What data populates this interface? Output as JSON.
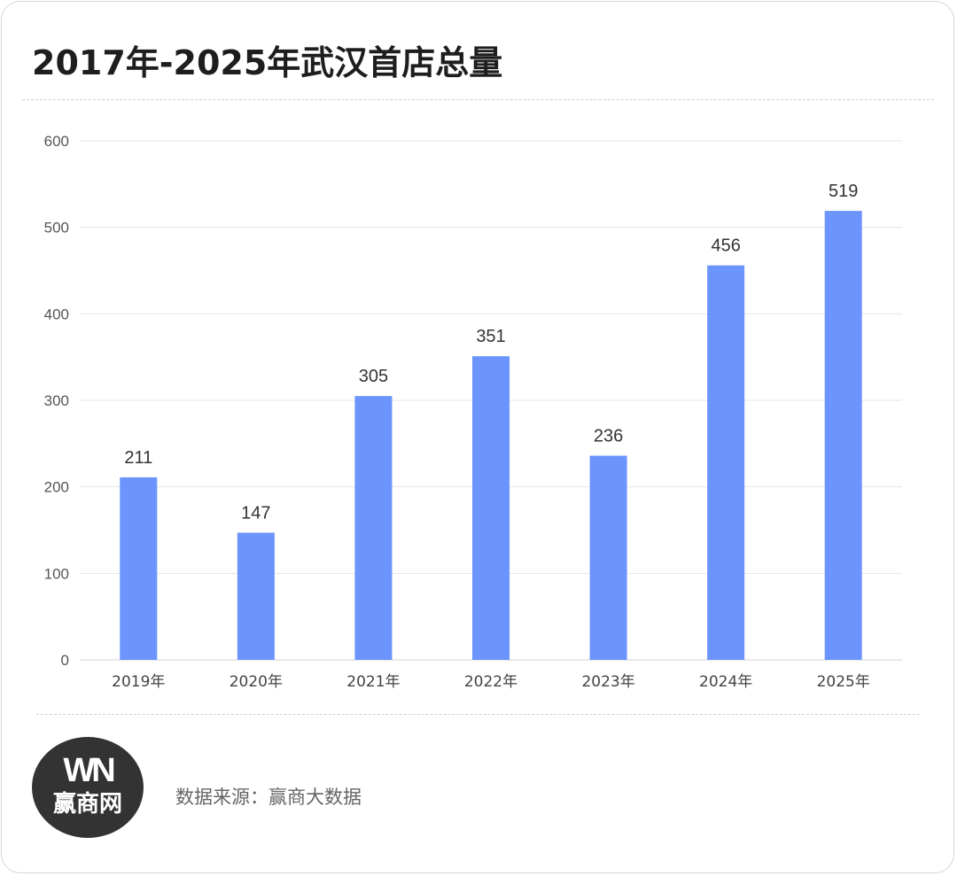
{
  "chart_data": {
    "type": "bar",
    "title": "2017年-2025年武汉首店总量",
    "categories": [
      "2019年",
      "2020年",
      "2021年",
      "2022年",
      "2023年",
      "2024年",
      "2025年"
    ],
    "series": [
      {
        "values": [
          211,
          147,
          305,
          351,
          236,
          456,
          519
        ]
      }
    ],
    "yticks": [
      0,
      100,
      200,
      300,
      400,
      500,
      600
    ],
    "ylim": [
      0,
      600
    ],
    "grid": true,
    "bar_color": "#6b94fd",
    "data_labels": true
  },
  "footer": {
    "logo_mark": "WN",
    "logo_text": "赢商网",
    "source": "数据来源：赢商大数据"
  }
}
